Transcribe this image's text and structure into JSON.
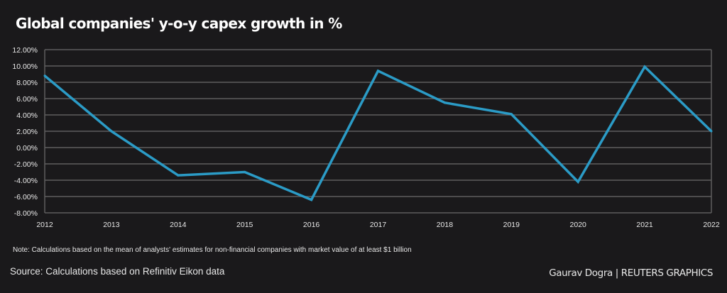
{
  "title": "Global companies' y-o-y capex growth in %",
  "note": "Note: Calculations based on the mean of analysts' estimates for non-financial companies  with market value of at least $1 billion",
  "source": "Source: Calculations based on Refinitiv Eikon data",
  "credit": "Gaurav Dogra | REUTERS GRAPHICS",
  "colors": {
    "background": "#1a191b",
    "line": "#2b9bc6",
    "grid": "#5e5e5e",
    "text": "#e8e8e8"
  },
  "chart_data": {
    "type": "line",
    "title": "Global companies' y-o-y capex growth in %",
    "xlabel": "",
    "ylabel": "",
    "x": [
      "2012",
      "2013",
      "2014",
      "2015",
      "2016",
      "2017",
      "2018",
      "2019",
      "2020",
      "2021",
      "2022"
    ],
    "series": [
      {
        "name": "Capex growth y-o-y",
        "values": [
          8.8,
          2.0,
          -3.4,
          -3.0,
          -6.4,
          9.4,
          5.5,
          4.1,
          -4.2,
          9.9,
          2.0
        ]
      }
    ],
    "ylim": [
      -8,
      12
    ],
    "yticks": [
      12,
      10,
      8,
      6,
      4,
      2,
      0,
      -2,
      -4,
      -6,
      -8
    ],
    "ytick_labels": [
      "12.00%",
      "10.00%",
      "8.00%",
      "6.00%",
      "4.00%",
      "2.00%",
      "0.00%",
      "-2.00%",
      "-4.00%",
      "-6.00%",
      "-8.00%"
    ],
    "grid": true,
    "legend": "none"
  }
}
